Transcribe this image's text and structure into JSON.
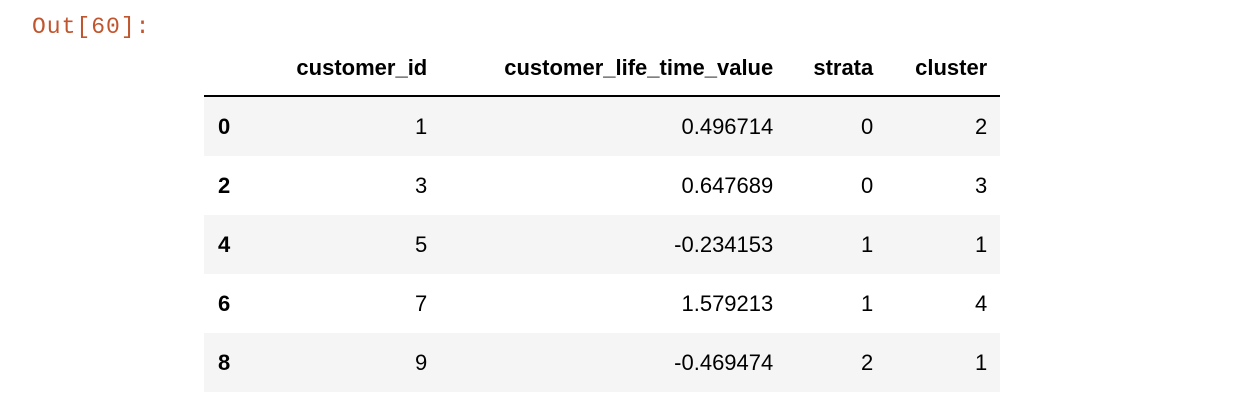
{
  "cell": {
    "prompt": "Out[60]:"
  },
  "dataframe": {
    "index_header": "",
    "columns": [
      "customer_id",
      "customer_life_time_value",
      "strata",
      "cluster"
    ],
    "rows": [
      {
        "index": "0",
        "customer_id": "1",
        "customer_life_time_value": "0.496714",
        "strata": "0",
        "cluster": "2"
      },
      {
        "index": "2",
        "customer_id": "3",
        "customer_life_time_value": "0.647689",
        "strata": "0",
        "cluster": "3"
      },
      {
        "index": "4",
        "customer_id": "5",
        "customer_life_time_value": "-0.234153",
        "strata": "1",
        "cluster": "1"
      },
      {
        "index": "6",
        "customer_id": "7",
        "customer_life_time_value": "1.579213",
        "strata": "1",
        "cluster": "4"
      },
      {
        "index": "8",
        "customer_id": "9",
        "customer_life_time_value": "-0.469474",
        "strata": "2",
        "cluster": "1"
      }
    ]
  },
  "colors": {
    "prompt": "#c0562f",
    "row_stripe": "#f5f5f5",
    "text": "#000000"
  }
}
